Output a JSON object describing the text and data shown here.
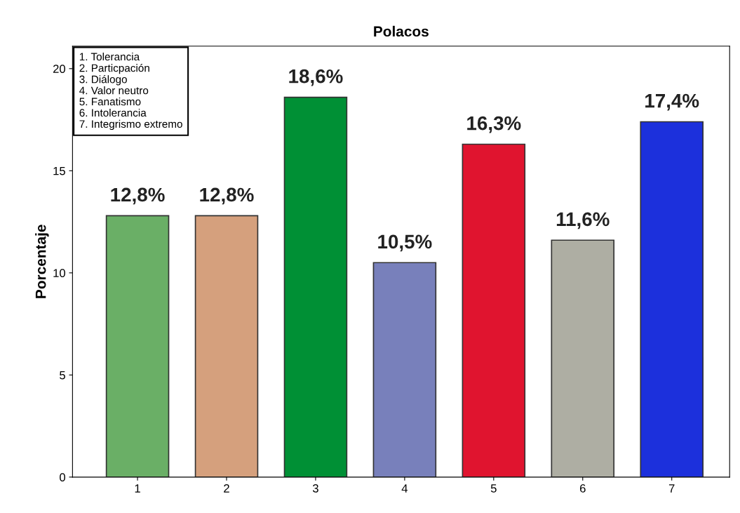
{
  "chart_data": {
    "type": "bar",
    "title": "Polacos",
    "ylabel": "Porcentaje",
    "categories": [
      "1",
      "2",
      "3",
      "4",
      "5",
      "6",
      "7"
    ],
    "values": [
      12.8,
      12.8,
      18.6,
      10.5,
      16.3,
      11.6,
      17.4
    ],
    "colors": [
      "#6aaf66",
      "#d5a07d",
      "#009035",
      "#7880bb",
      "#e0142f",
      "#aeaea3",
      "#1c30dc"
    ],
    "value_labels": [
      "12,8%",
      "12,8%",
      "18,6%",
      "10,5%",
      "16,3%",
      "11,6%",
      "17,4%"
    ],
    "ylim": [
      0,
      21.1
    ],
    "yticks": [
      0,
      5,
      10,
      15,
      20
    ],
    "grid": false,
    "legend": false,
    "annotations": [
      "1. Tolerancia\n2. Particpación\n3. Diálogo\n4. Valor neutro\n5. Fanatismo\n6. Intolerancia\n7. Integrismo extremo"
    ]
  }
}
